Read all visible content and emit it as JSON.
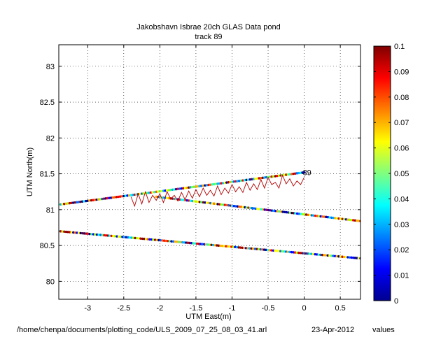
{
  "chart_data": {
    "type": "scatter",
    "title": "Jakobshavn Isbrae 20ch GLAS Data pond",
    "subtitle": "track 89",
    "xlabel": "UTM East(m)",
    "ylabel": "UTM North(m)",
    "xlim": [
      -3.4,
      0.78
    ],
    "ylim": [
      79.75,
      83.3
    ],
    "xticks": [
      -3,
      -2.5,
      -2,
      -1.5,
      -1,
      -0.5,
      0,
      0.5
    ],
    "xtick_labels": [
      "-3",
      "-2.5",
      "-2",
      "-1.5",
      "-1",
      "-0.5",
      "0",
      "0.5"
    ],
    "yticks": [
      80,
      80.5,
      81,
      81.5,
      82,
      82.5,
      83
    ],
    "ytick_labels": [
      "80",
      "80.5",
      "81",
      "81.5",
      "82",
      "82.5",
      "83"
    ],
    "grid": true,
    "tracks": [
      {
        "x": [
          -3.4,
          0.0
        ],
        "y": [
          81.07,
          81.52
        ]
      },
      {
        "x": [
          -2.05,
          0.78
        ],
        "y": [
          81.18,
          80.84
        ]
      },
      {
        "x": [
          -3.4,
          0.78
        ],
        "y": [
          80.7,
          80.32
        ]
      }
    ],
    "noisy_line": {
      "color": "#b00000",
      "x": [
        -2.4,
        -2.35,
        -2.3,
        -2.25,
        -2.2,
        -2.15,
        -2.1,
        -2.05,
        -2.0,
        -1.95,
        -1.9,
        -1.85,
        -1.8,
        -1.75,
        -1.7,
        -1.65,
        -1.6,
        -1.55,
        -1.5,
        -1.45,
        -1.4,
        -1.35,
        -1.3,
        -1.25,
        -1.2,
        -1.15,
        -1.1,
        -1.05,
        -1.0,
        -0.95,
        -0.9,
        -0.85,
        -0.8,
        -0.75,
        -0.7,
        -0.65,
        -0.6,
        -0.55,
        -0.5,
        -0.45,
        -0.4,
        -0.35,
        -0.3,
        -0.25,
        -0.2,
        -0.15,
        -0.1,
        -0.05,
        0.0
      ],
      "y": [
        81.18,
        81.05,
        81.22,
        81.08,
        81.25,
        81.1,
        81.2,
        81.13,
        81.22,
        81.1,
        81.25,
        81.15,
        81.2,
        81.12,
        81.24,
        81.14,
        81.26,
        81.16,
        81.28,
        81.18,
        81.3,
        81.2,
        81.27,
        81.19,
        81.33,
        81.21,
        81.3,
        81.23,
        81.35,
        81.25,
        81.32,
        81.24,
        81.38,
        81.27,
        81.36,
        81.28,
        81.42,
        81.3,
        81.45,
        81.35,
        81.38,
        81.3,
        81.48,
        81.36,
        81.43,
        81.33,
        81.4,
        81.35,
        81.45
      ]
    },
    "annotation": {
      "text": "89",
      "x": 0.0,
      "y": 81.52
    },
    "colorbar": {
      "min": 0,
      "max": 0.1,
      "ticks": [
        0,
        0.01,
        0.02,
        0.03,
        0.04,
        0.05,
        0.06,
        0.07,
        0.08,
        0.09,
        0.1
      ],
      "tick_labels": [
        "0",
        "0.01",
        "0.02",
        "0.03",
        "0.04",
        "0.05",
        "0.06",
        "0.07",
        "0.08",
        "0.09",
        "0.1"
      ],
      "colormap": "jet"
    }
  },
  "footer": {
    "path": "/home/chenpa/documents/plotting_code/ULS_2009_07_25_08_03_41.arl",
    "date": "23-Apr-2012",
    "values_label": "values"
  },
  "colors": {
    "axes": "#000000",
    "grid": "#000000",
    "background": "#ffffff"
  }
}
